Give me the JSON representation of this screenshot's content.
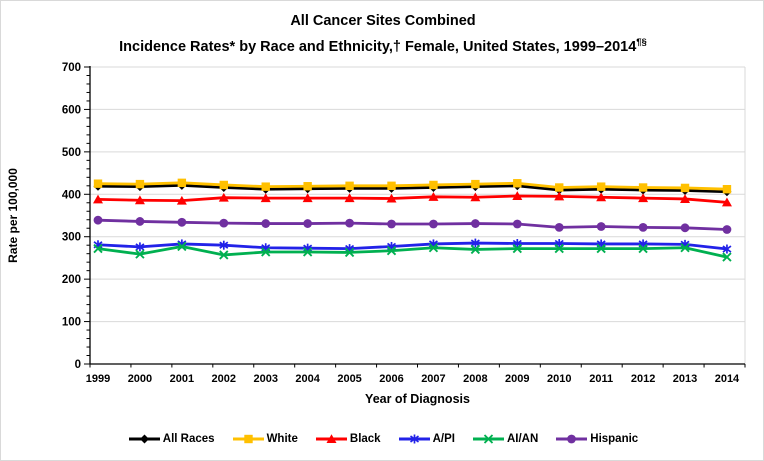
{
  "title": {
    "line1": "All Cancer Sites Combined",
    "line2": "Incidence Rates* by Race and Ethnicity,† Female, United States, 1999–2014",
    "line2_superscript": "¶§"
  },
  "chart_data": {
    "type": "line",
    "x": [
      1999,
      2000,
      2001,
      2002,
      2003,
      2004,
      2005,
      2006,
      2007,
      2008,
      2009,
      2010,
      2011,
      2012,
      2013,
      2014
    ],
    "xlabel": "Year of Diagnosis",
    "ylabel": "Rate per 100,000",
    "ylim": [
      0,
      700
    ],
    "y_tick_step": 100,
    "y_minor_tick_step": 20,
    "grid": "horizontal-major",
    "gridline_color": "#d9d9d9",
    "axis_color": "#000000",
    "legend_position": "bottom",
    "series": [
      {
        "name": "All Races",
        "color": "#000000",
        "marker": "diamond",
        "values": [
          419,
          418,
          421,
          416,
          412,
          413,
          414,
          414,
          416,
          418,
          420,
          410,
          412,
          410,
          409,
          406
        ]
      },
      {
        "name": "White",
        "color": "#FFC000",
        "marker": "square",
        "values": [
          425,
          424,
          427,
          422,
          418,
          419,
          420,
          420,
          422,
          424,
          426,
          416,
          418,
          416,
          415,
          412
        ]
      },
      {
        "name": "Black",
        "color": "#FF0000",
        "marker": "triangle",
        "values": [
          388,
          386,
          385,
          392,
          391,
          391,
          391,
          390,
          394,
          393,
          396,
          395,
          393,
          391,
          389,
          381
        ]
      },
      {
        "name": "A/PI",
        "color": "#2222E8",
        "marker": "star",
        "values": [
          281,
          276,
          283,
          280,
          274,
          273,
          272,
          277,
          283,
          285,
          284,
          284,
          283,
          283,
          282,
          271
        ]
      },
      {
        "name": "AI/AN",
        "color": "#00B050",
        "marker": "x",
        "values": [
          272,
          259,
          277,
          257,
          264,
          264,
          263,
          267,
          274,
          270,
          272,
          272,
          272,
          272,
          274,
          252
        ]
      },
      {
        "name": "Hispanic",
        "color": "#7030A0",
        "marker": "circle",
        "values": [
          339,
          336,
          334,
          332,
          331,
          331,
          332,
          330,
          330,
          331,
          330,
          322,
          324,
          322,
          321,
          317
        ]
      }
    ]
  }
}
